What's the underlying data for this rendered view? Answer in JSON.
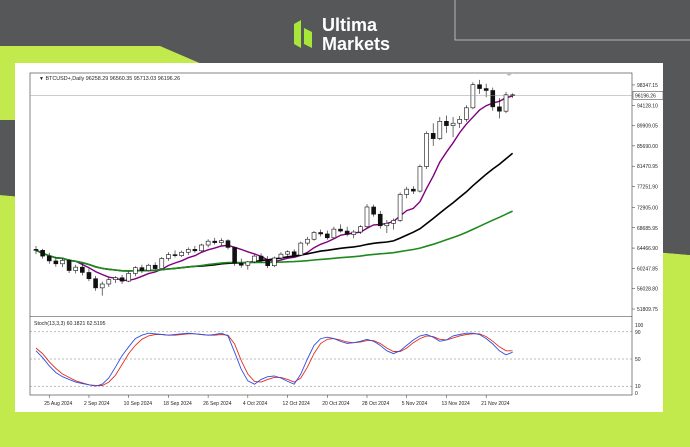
{
  "brand": {
    "name_line1": "Ultima",
    "name_line2": "Markets",
    "logo_color": "#a8e63a"
  },
  "chart_data": {
    "type": "line",
    "symbol_header": "BTCUSD+,Daily",
    "ohlc_header": "96258.29 96560.35 95713.03 96196.26",
    "current_price": "96196.26",
    "y_ticks": [
      "98347.15",
      "94128.10",
      "89909.05",
      "85690.00",
      "81470.95",
      "77251.90",
      "72905.00",
      "68685.95",
      "64466.90",
      "60247.85",
      "56028.80",
      "51809.75"
    ],
    "x_ticks": [
      "25 Aug 2024",
      "2 Sep 2024",
      "10 Sep 2024",
      "18 Sep 2024",
      "26 Sep 2024",
      "4 Oct 2024",
      "12 Oct 2024",
      "20 Oct 2024",
      "28 Oct 2024",
      "5 Nov 2024",
      "13 Nov 2024",
      "21 Nov 2024"
    ],
    "ylim": [
      51809.75,
      100000
    ],
    "candles": [
      [
        64200,
        64900,
        63200,
        64000
      ],
      [
        64000,
        64300,
        62300,
        62800
      ],
      [
        62800,
        63500,
        61200,
        61800
      ],
      [
        61800,
        62600,
        60600,
        61200
      ],
      [
        61200,
        62400,
        60500,
        61900
      ],
      [
        61900,
        62200,
        59300,
        59800
      ],
      [
        59800,
        61000,
        59200,
        60500
      ],
      [
        60500,
        61300,
        58800,
        59400
      ],
      [
        59400,
        60200,
        57600,
        58100
      ],
      [
        58100,
        58700,
        55600,
        56200
      ],
      [
        56200,
        57500,
        54600,
        57000
      ],
      [
        57000,
        58400,
        56400,
        57900
      ],
      [
        57900,
        58600,
        57200,
        58300
      ],
      [
        58300,
        58900,
        57000,
        57600
      ],
      [
        57600,
        59600,
        57400,
        59200
      ],
      [
        59200,
        60700,
        58600,
        60400
      ],
      [
        60400,
        61000,
        59300,
        59800
      ],
      [
        59800,
        61200,
        59600,
        60900
      ],
      [
        60900,
        61500,
        59900,
        60200
      ],
      [
        60200,
        62600,
        60000,
        62300
      ],
      [
        62300,
        63600,
        61800,
        63100
      ],
      [
        63100,
        64000,
        62500,
        62900
      ],
      [
        62900,
        63900,
        62600,
        63600
      ],
      [
        63600,
        64600,
        63000,
        64200
      ],
      [
        64200,
        64900,
        63500,
        63900
      ],
      [
        63900,
        65400,
        63700,
        65100
      ],
      [
        65100,
        66300,
        64600,
        65900
      ],
      [
        65900,
        66600,
        65200,
        65600
      ],
      [
        65600,
        66500,
        65000,
        66000
      ],
      [
        66000,
        66300,
        64200,
        64600
      ],
      [
        64600,
        64800,
        60800,
        61300
      ],
      [
        61300,
        62300,
        60400,
        60900
      ],
      [
        60900,
        61800,
        60000,
        61600
      ],
      [
        61600,
        63100,
        61300,
        62800
      ],
      [
        62800,
        63400,
        61500,
        62000
      ],
      [
        62000,
        62800,
        60300,
        60800
      ],
      [
        60800,
        62700,
        60500,
        62400
      ],
      [
        62400,
        63600,
        62100,
        63200
      ],
      [
        63200,
        64000,
        62800,
        63700
      ],
      [
        63700,
        64200,
        62500,
        63000
      ],
      [
        63000,
        65800,
        62900,
        65500
      ],
      [
        65500,
        66800,
        65000,
        66300
      ],
      [
        66300,
        68000,
        66000,
        67700
      ],
      [
        67700,
        68300,
        66900,
        67400
      ],
      [
        67400,
        68100,
        66200,
        66600
      ],
      [
        66600,
        68900,
        66400,
        68400
      ],
      [
        68400,
        69400,
        67700,
        68000
      ],
      [
        68000,
        68900,
        66900,
        67300
      ],
      [
        67300,
        68200,
        66500,
        67800
      ],
      [
        67800,
        69200,
        67400,
        68900
      ],
      [
        68900,
        73600,
        68600,
        73000
      ],
      [
        73000,
        73500,
        71000,
        71500
      ],
      [
        71500,
        72200,
        68500,
        69100
      ],
      [
        69100,
        70300,
        67600,
        69600
      ],
      [
        69600,
        70600,
        68300,
        70200
      ],
      [
        70200,
        76000,
        69900,
        75600
      ],
      [
        75600,
        77200,
        74800,
        76700
      ],
      [
        76700,
        77300,
        75700,
        76300
      ],
      [
        76300,
        81800,
        76000,
        81400
      ],
      [
        81400,
        88700,
        80900,
        88300
      ],
      [
        88300,
        90400,
        85700,
        87200
      ],
      [
        87200,
        91700,
        86900,
        90800
      ],
      [
        90800,
        92000,
        88400,
        89900
      ],
      [
        89900,
        91700,
        87500,
        90400
      ],
      [
        90400,
        91900,
        89400,
        91200
      ],
      [
        91200,
        94100,
        90700,
        93600
      ],
      [
        93600,
        98900,
        93300,
        98400
      ],
      [
        98400,
        99400,
        96500,
        97600
      ],
      [
        97600,
        98600,
        95800,
        97200
      ],
      [
        97200,
        97800,
        93000,
        93800
      ],
      [
        93800,
        95600,
        91400,
        92900
      ],
      [
        92900,
        96900,
        92500,
        96300
      ],
      [
        96300,
        96600,
        95700,
        96200
      ]
    ],
    "series": [
      {
        "role": "ma-fast",
        "color": "#800080"
      },
      {
        "role": "ma-mid",
        "color": "#000000"
      },
      {
        "role": "ma-slow",
        "color": "#1e8a1e"
      }
    ],
    "osc_title": "Stoch(13,3,3) 60.1821 62.5195",
    "osc_ticks": [
      "100",
      "90",
      "50",
      "10",
      "0"
    ],
    "osc_ylim": [
      0,
      100
    ],
    "stoch_main": [
      62,
      52,
      40,
      30,
      24,
      20,
      16,
      14,
      12,
      10,
      13,
      22,
      38,
      55,
      68,
      80,
      85,
      88,
      87,
      86,
      85,
      86,
      87,
      88,
      87,
      86,
      85,
      86,
      88,
      84,
      60,
      35,
      18,
      13,
      20,
      24,
      25,
      22,
      17,
      13,
      28,
      50,
      70,
      80,
      82,
      80,
      76,
      73,
      74,
      76,
      79,
      76,
      70,
      62,
      58,
      62,
      70,
      78,
      84,
      86,
      82,
      76,
      78,
      84,
      86,
      88,
      88,
      86,
      80,
      72,
      62,
      56,
      60
    ],
    "stoch_signal": [
      66,
      58,
      46,
      36,
      28,
      23,
      18,
      15,
      12,
      11,
      11,
      16,
      26,
      42,
      58,
      70,
      79,
      84,
      86,
      86,
      85,
      85,
      86,
      87,
      87,
      86,
      85,
      85,
      86,
      85,
      72,
      48,
      28,
      17,
      16,
      20,
      23,
      23,
      20,
      16,
      22,
      38,
      58,
      73,
      79,
      80,
      78,
      75,
      74,
      75,
      77,
      77,
      73,
      66,
      61,
      61,
      66,
      74,
      80,
      84,
      83,
      79,
      78,
      81,
      84,
      86,
      87,
      87,
      83,
      76,
      68,
      62,
      62
    ]
  }
}
